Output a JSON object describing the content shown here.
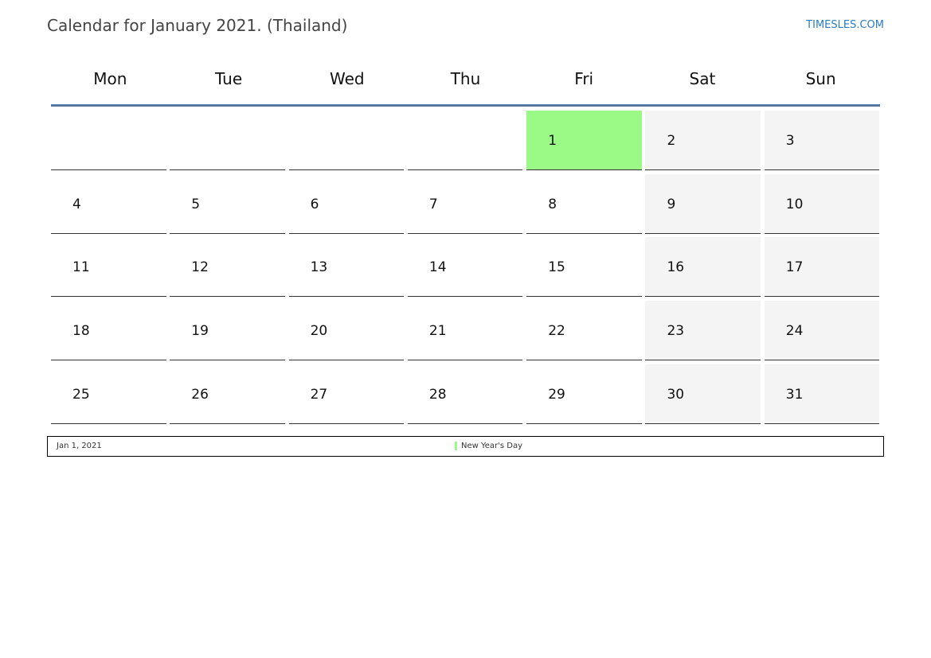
{
  "title": "Calendar for January 2021. (Thailand)",
  "site": "TIMESLES.COM",
  "days": [
    "Mon",
    "Tue",
    "Wed",
    "Thu",
    "Fri",
    "Sat",
    "Sun"
  ],
  "weeks": [
    [
      "",
      "",
      "",
      "",
      "1",
      "2",
      "3"
    ],
    [
      "4",
      "5",
      "6",
      "7",
      "8",
      "9",
      "10"
    ],
    [
      "11",
      "12",
      "13",
      "14",
      "15",
      "16",
      "17"
    ],
    [
      "18",
      "19",
      "20",
      "21",
      "22",
      "23",
      "24"
    ],
    [
      "25",
      "26",
      "27",
      "28",
      "29",
      "30",
      "31"
    ]
  ],
  "holidays": [
    {
      "date": "Jan 1, 2021",
      "name": "New Year's Day",
      "day": "1",
      "color": "#9afa85"
    }
  ],
  "colors": {
    "weekend": "#f4f4f4",
    "header_line": "#5677a0",
    "link": "#2a7bc4"
  }
}
